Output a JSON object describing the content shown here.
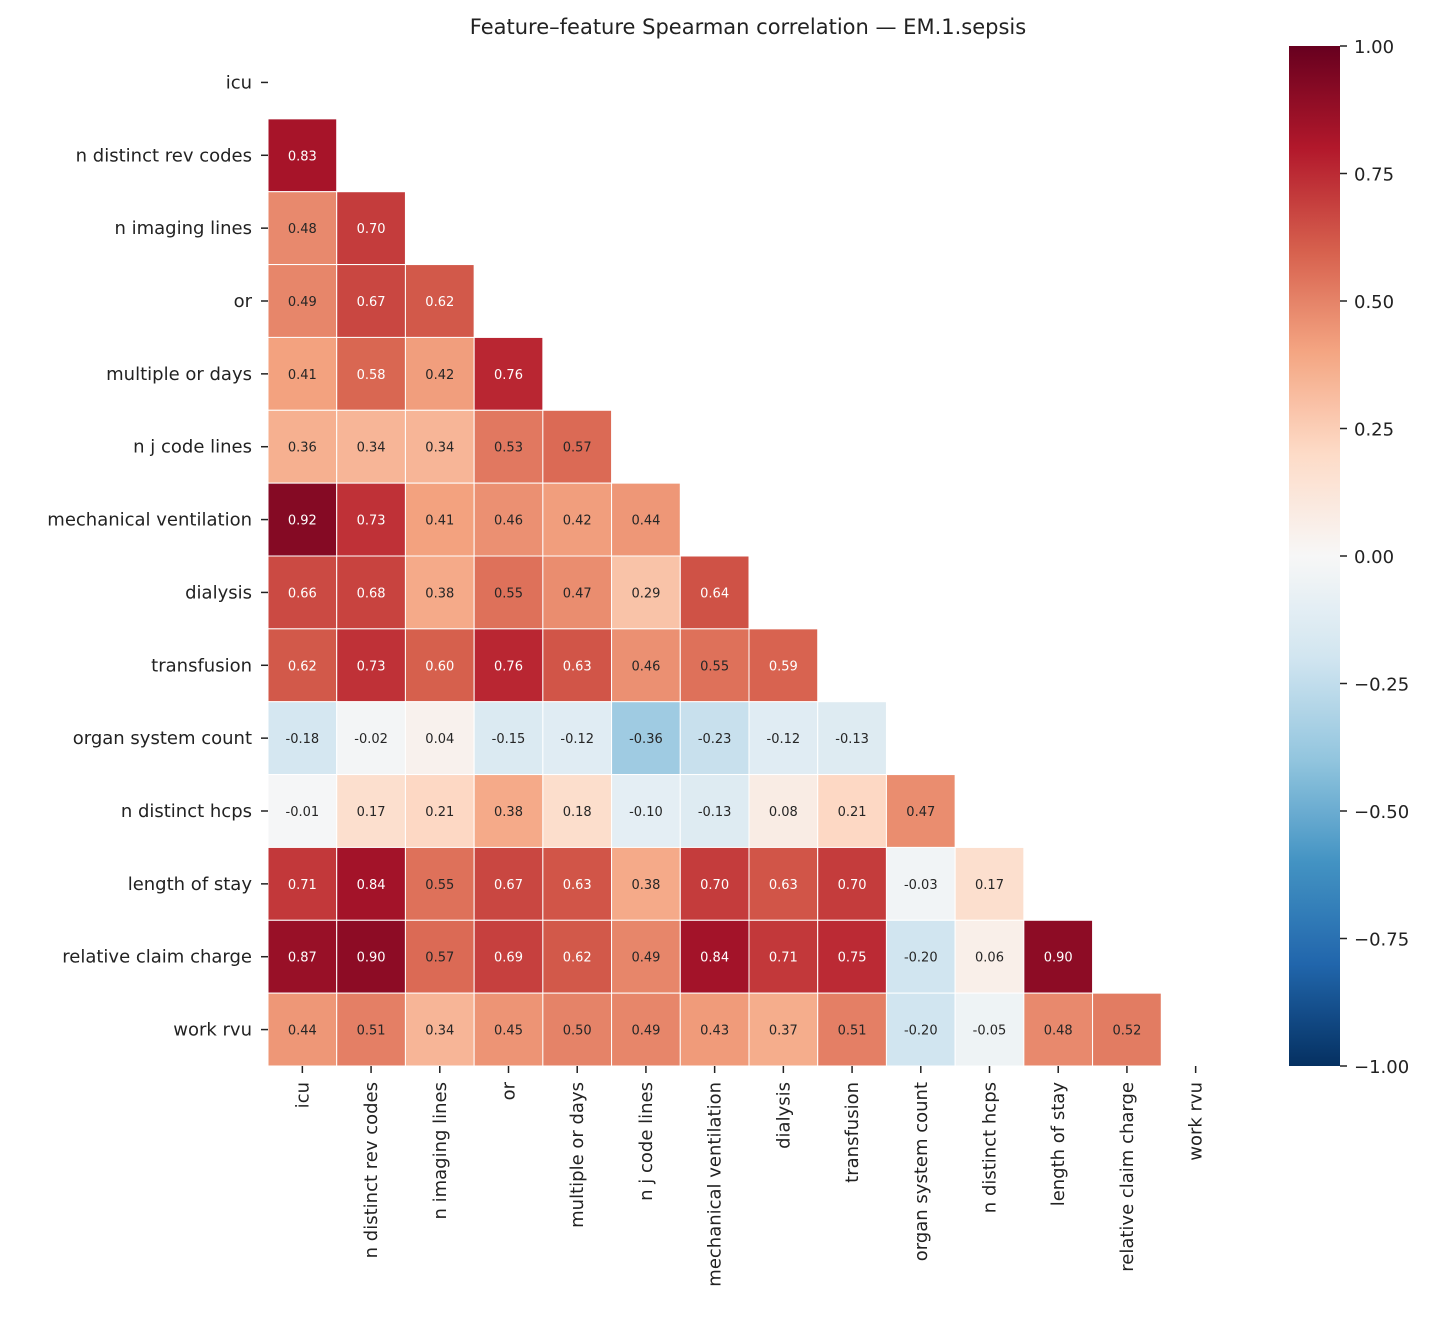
{
  "chart_data": {
    "type": "heatmap",
    "title": "Feature–feature Spearman correlation — EM.1.sepsis",
    "labels": [
      "icu",
      "n distinct rev codes",
      "n imaging lines",
      "or",
      "multiple or days",
      "n j code lines",
      "mechanical ventilation",
      "dialysis",
      "transfusion",
      "organ system count",
      "n distinct hcps",
      "length of stay",
      "relative claim charge",
      "work rvu"
    ],
    "mask": "upper triangle including diagonal",
    "lower_triangle": [
      [],
      [
        0.83
      ],
      [
        0.48,
        0.7
      ],
      [
        0.49,
        0.67,
        0.62
      ],
      [
        0.41,
        0.58,
        0.42,
        0.76
      ],
      [
        0.36,
        0.34,
        0.34,
        0.53,
        0.57
      ],
      [
        0.92,
        0.73,
        0.41,
        0.46,
        0.42,
        0.44
      ],
      [
        0.66,
        0.68,
        0.38,
        0.55,
        0.47,
        0.29,
        0.64
      ],
      [
        0.62,
        0.73,
        0.6,
        0.76,
        0.63,
        0.46,
        0.55,
        0.59
      ],
      [
        -0.18,
        -0.02,
        0.04,
        -0.15,
        -0.12,
        -0.36,
        -0.23,
        -0.12,
        -0.13
      ],
      [
        -0.01,
        0.17,
        0.21,
        0.38,
        0.18,
        -0.1,
        -0.13,
        0.08,
        0.21,
        0.47
      ],
      [
        0.71,
        0.84,
        0.55,
        0.67,
        0.63,
        0.38,
        0.7,
        0.63,
        0.7,
        -0.03,
        0.17
      ],
      [
        0.87,
        0.9,
        0.57,
        0.69,
        0.62,
        0.49,
        0.84,
        0.71,
        0.75,
        -0.2,
        0.06,
        0.9
      ],
      [
        0.44,
        0.51,
        0.34,
        0.45,
        0.5,
        0.49,
        0.43,
        0.37,
        0.51,
        -0.2,
        -0.05,
        0.48,
        0.52
      ]
    ],
    "colormap": "RdBu_r",
    "colormap_stops": [
      "#053061",
      "#2166ac",
      "#4393c3",
      "#92c5de",
      "#d1e5f0",
      "#f7f7f7",
      "#fddbc7",
      "#f4a582",
      "#d6604d",
      "#b2182b",
      "#67001f"
    ],
    "vmin": -1.0,
    "vmax": 1.0,
    "colorbar_ticks": [
      "-1.00",
      "-0.75",
      "-0.50",
      "-0.25",
      "0.00",
      "0.25",
      "0.50",
      "0.75",
      "1.00"
    ],
    "colorbar_placement": "right"
  }
}
